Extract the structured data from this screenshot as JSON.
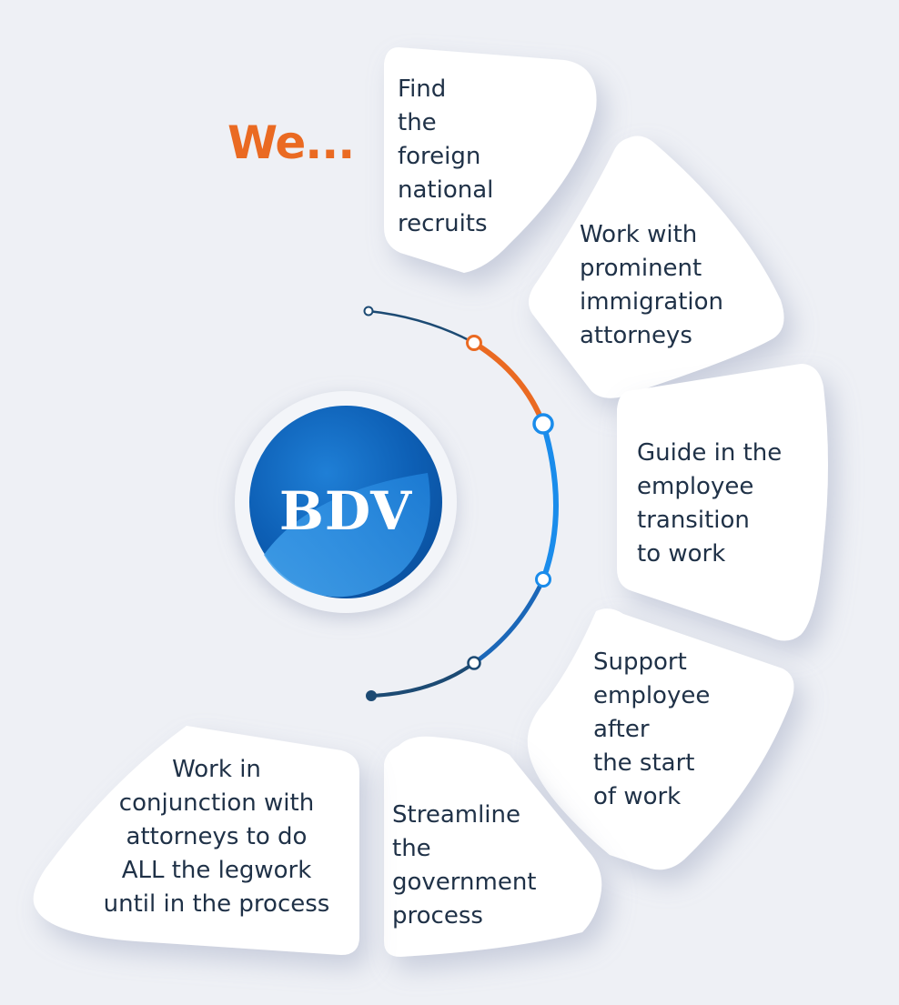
{
  "heading": "We...",
  "logo": {
    "text": "BDV",
    "colors": {
      "outer": "#1f6fc4",
      "inner": "#0d5fb5",
      "highlight": "#3d9be9"
    }
  },
  "colors": {
    "accent": "#ea6a22",
    "blue": "#1a8ceb",
    "navy": "#1c4a73",
    "text": "#1f3147",
    "card": "#ffffff",
    "background": "#eef0f5"
  },
  "steps": [
    {
      "lines": [
        "Find",
        "the",
        "foreign",
        "national",
        "recruits"
      ]
    },
    {
      "lines": [
        "Work with",
        "prominent",
        "immigration",
        "attorneys"
      ]
    },
    {
      "lines": [
        "Guide in the",
        "employee",
        "transition",
        "to work"
      ]
    },
    {
      "lines": [
        "Support",
        "employee",
        "after",
        "the start",
        "of work"
      ]
    },
    {
      "lines": [
        "Streamline",
        "the",
        "government",
        "process"
      ]
    },
    {
      "lines": [
        "Work in",
        "conjunction with",
        "attorneys to do",
        "ALL the legwork",
        "until in the process"
      ]
    }
  ]
}
